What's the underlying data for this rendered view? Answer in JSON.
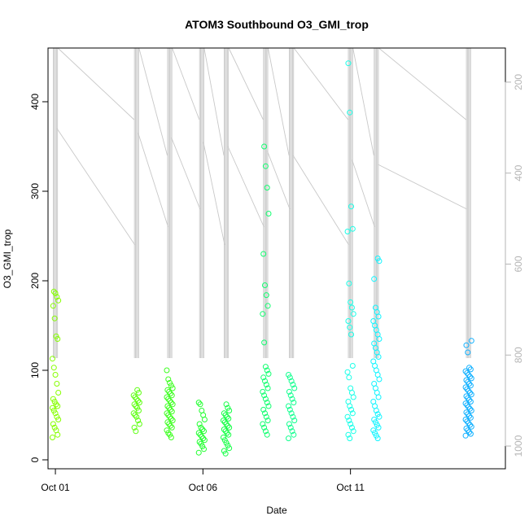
{
  "chart_data": {
    "type": "scatter",
    "title": "ATOM3 Southbound O3_GMI_trop",
    "xlabel": "Date",
    "ylabel": "O3_GMI_trop",
    "xlim": [
      "2017-09-30T18:00",
      "2017-10-16T06:00"
    ],
    "ylim": [
      -10,
      460
    ],
    "x_ticks": [
      "Oct 01",
      "Oct 06",
      "Oct 11"
    ],
    "x_tick_dates": [
      "2017-10-01",
      "2017-10-06",
      "2017-10-11"
    ],
    "y_ticks": [
      0,
      100,
      200,
      300,
      400
    ],
    "y2_axis": {
      "label": "",
      "ticks": [
        200,
        400,
        600,
        800,
        1000
      ],
      "lim": [
        1050,
        125
      ],
      "color": "#b5b5b5"
    },
    "grid": false,
    "legend": "none",
    "point_style": "open circle",
    "gray_line_color": "#c8c8c8",
    "series": [
      {
        "day": "2017-10-01T00:00",
        "color": "#86ff00",
        "values": [
          25,
          28,
          33,
          36,
          40,
          45,
          48,
          52,
          55,
          58,
          60,
          62,
          65,
          68,
          75,
          85,
          95,
          103,
          113,
          135,
          138,
          158,
          172,
          178,
          182,
          186,
          188
        ]
      },
      {
        "day": "2017-10-03T18:00",
        "color": "#5dff10",
        "values": [
          32,
          36,
          40,
          44,
          48,
          50,
          52,
          55,
          58,
          60,
          62,
          64,
          66,
          68,
          70,
          72,
          75,
          78
        ]
      },
      {
        "day": "2017-10-04T21:00",
        "color": "#3dff20",
        "values": [
          25,
          28,
          30,
          33,
          36,
          38,
          40,
          42,
          44,
          46,
          48,
          50,
          52,
          54,
          56,
          58,
          60,
          62,
          64,
          66,
          68,
          70,
          72,
          74,
          76,
          78,
          80,
          83,
          86,
          90,
          100
        ]
      },
      {
        "day": "2017-10-05T23:00",
        "color": "#22ff30",
        "values": [
          8,
          12,
          15,
          18,
          20,
          22,
          24,
          26,
          28,
          30,
          32,
          34,
          36,
          40,
          45,
          50,
          55,
          62,
          64
        ]
      },
      {
        "day": "2017-10-06T19:00",
        "color": "#14ff45",
        "values": [
          7,
          10,
          13,
          16,
          19,
          22,
          25,
          28,
          30,
          32,
          34,
          36,
          38,
          40,
          42,
          44,
          46,
          48,
          50,
          52,
          55,
          58,
          62
        ]
      },
      {
        "day": "2017-10-08T03:00",
        "color": "#12ff70",
        "values": [
          28,
          32,
          36,
          40,
          44,
          48,
          52,
          56,
          60,
          64,
          68,
          72,
          76,
          80,
          84,
          88,
          92,
          96,
          100,
          104,
          131,
          163,
          172,
          184,
          195,
          230,
          275,
          304,
          328,
          350
        ]
      },
      {
        "day": "2017-10-09T00:00",
        "color": "#14ff90",
        "values": [
          24,
          28,
          32,
          36,
          40,
          44,
          48,
          52,
          56,
          60,
          64,
          68,
          72,
          76,
          80,
          84,
          88,
          92,
          95
        ]
      },
      {
        "day": "2017-10-11T00:00",
        "color": "#1affe8",
        "values": [
          24,
          28,
          32,
          36,
          40,
          44,
          48,
          52,
          56,
          60,
          65,
          70,
          75,
          80,
          92,
          98,
          105,
          140,
          148,
          155,
          163,
          170,
          176,
          197,
          255,
          258,
          283,
          388,
          443
        ]
      },
      {
        "day": "2017-10-11T21:00",
        "color": "#10f4ff",
        "values": [
          24,
          27,
          30,
          33,
          36,
          39,
          42,
          45,
          48,
          51,
          55,
          60,
          65,
          70,
          75,
          80,
          85,
          90,
          95,
          100,
          105,
          110,
          115,
          120,
          125,
          130,
          135,
          140,
          145,
          150,
          155,
          160,
          165,
          170,
          202,
          222,
          225
        ]
      },
      {
        "day": "2017-10-15T00:00",
        "color": "#10b0ff",
        "values": [
          27,
          29,
          31,
          33,
          35,
          37,
          39,
          41,
          43,
          45,
          47,
          49,
          51,
          53,
          55,
          57,
          59,
          61,
          63,
          65,
          67,
          69,
          71,
          73,
          75,
          77,
          79,
          81,
          83,
          85,
          87,
          89,
          91,
          93,
          95,
          97,
          99,
          101,
          103,
          120,
          128,
          133
        ]
      }
    ]
  }
}
